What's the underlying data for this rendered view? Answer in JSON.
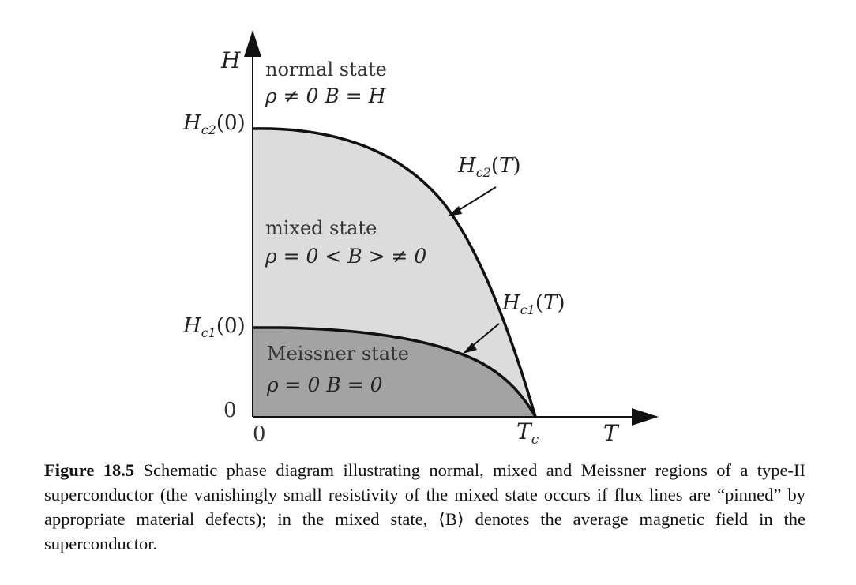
{
  "diagram": {
    "axes": {
      "y_label": "H",
      "x_label": "T",
      "y_origin": "0",
      "x_origin": "0"
    },
    "ticks": {
      "hc2_zero": "H_c2(0)",
      "hc1_zero": "H_c1(0)",
      "tc": "T_c"
    },
    "regions": {
      "normal": {
        "name": "normal state",
        "relation": "ρ ≠ 0  B = H"
      },
      "mixed": {
        "name": "mixed state",
        "relation": "ρ = 0  < B > ≠ 0"
      },
      "meissner": {
        "name": "Meissner state",
        "relation": "ρ = 0  B = 0"
      }
    },
    "curves": {
      "hc2": "H_c2(T)",
      "hc1": "H_c1(T)"
    },
    "colors": {
      "mixed_fill": "#dcdcdc",
      "meissner_fill": "#a3a3a3",
      "curve": "#111111"
    }
  },
  "caption": {
    "label": "Figure 18.5",
    "text": "Schematic phase diagram illustrating normal, mixed and Meissner regions of a type-II superconductor (the vanishingly small resistivity of the mixed state occurs if flux lines are “pinned” by appropriate material defects); in the mixed state, ⟨B⟩ denotes the average magnetic field in the superconductor."
  }
}
